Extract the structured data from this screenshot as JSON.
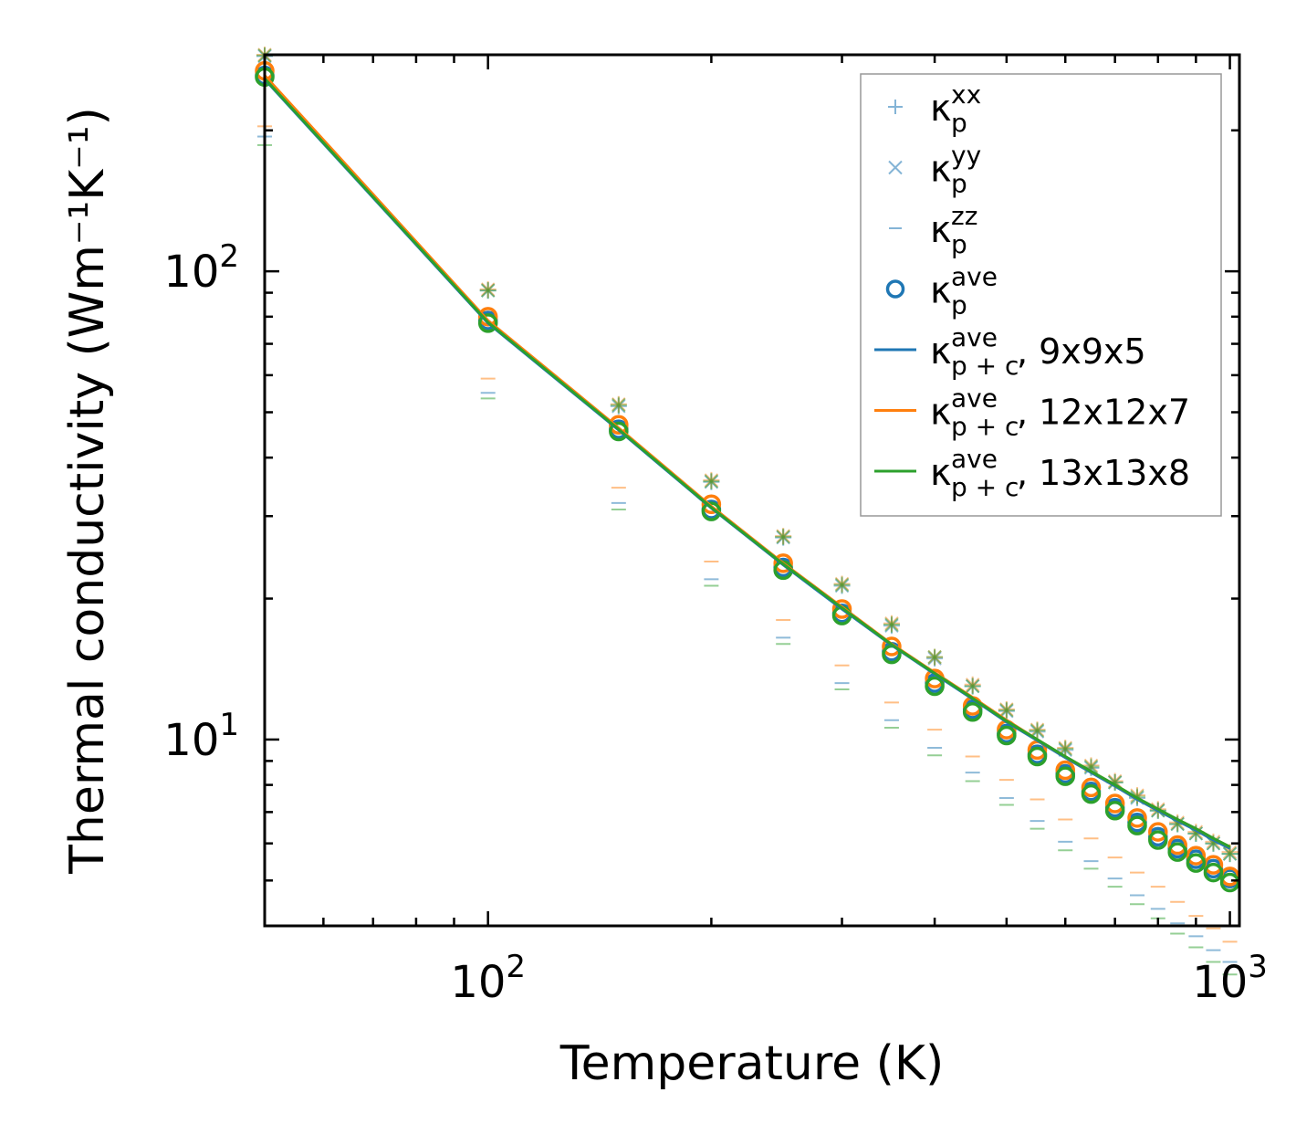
{
  "chart_data": {
    "type": "scatter",
    "title": "",
    "xlabel": "Temperature (K)",
    "ylabel": "Thermal conductivity (Wm⁻¹K⁻¹)",
    "xscale": "log",
    "yscale": "log",
    "xlim": [
      50,
      1030
    ],
    "ylim": [
      4.0,
      290
    ],
    "x_major_ticks": [
      {
        "value": 100,
        "base": "10",
        "exp": "2"
      },
      {
        "value": 1000,
        "base": "10",
        "exp": "3"
      }
    ],
    "y_major_ticks": [
      {
        "value": 10,
        "base": "10",
        "exp": "1"
      },
      {
        "value": 100,
        "base": "10",
        "exp": "2"
      }
    ],
    "x": [
      50,
      100,
      150,
      200,
      250,
      300,
      350,
      400,
      450,
      500,
      550,
      600,
      650,
      700,
      750,
      800,
      850,
      900,
      950,
      1000
    ],
    "legend_position": "upper right",
    "colors": {
      "blue": "#1f77b4",
      "orange": "#ff7f0e",
      "green": "#2ca02c"
    },
    "legend": [
      {
        "kind": "plus",
        "label": "κ",
        "sup": "xx",
        "sub": "p"
      },
      {
        "kind": "cross",
        "label": "κ",
        "sup": "yy",
        "sub": "p"
      },
      {
        "kind": "dash",
        "label": "κ",
        "sup": "zz",
        "sub": "p"
      },
      {
        "kind": "circle",
        "label": "κ",
        "sup": "ave",
        "sub": "p"
      },
      {
        "kind": "line",
        "color": "blue",
        "label": "κ",
        "sup": "ave",
        "sub": "p + c",
        "suffix": ", 9x9x5"
      },
      {
        "kind": "line",
        "color": "orange",
        "label": "κ",
        "sup": "ave",
        "sub": "p + c",
        "suffix": ", 12x12x7"
      },
      {
        "kind": "line",
        "color": "green",
        "label": "κ",
        "sup": "ave",
        "sub": "p + c",
        "suffix": ", 13x13x8"
      }
    ],
    "series": [
      {
        "name": "9x9x5",
        "color": "blue",
        "kxx": [
          288,
          91,
          51.5,
          35.5,
          27,
          21.3,
          17.5,
          14.9,
          13,
          11.5,
          10.4,
          9.5,
          8.7,
          8.1,
          7.5,
          7.05,
          6.6,
          6.3,
          6.0,
          5.7
        ],
        "kzz": [
          194,
          55,
          32,
          22,
          16.5,
          13.2,
          11.0,
          9.6,
          8.5,
          7.5,
          6.7,
          6.05,
          5.5,
          5.05,
          4.65,
          4.35,
          4.05,
          3.8,
          3.55,
          3.35
        ],
        "kave": [
          262,
          78.5,
          46,
          31,
          23.3,
          18.6,
          15.4,
          13.2,
          11.6,
          10.3,
          9.3,
          8.45,
          7.75,
          7.15,
          6.65,
          6.2,
          5.85,
          5.55,
          5.3,
          5.05
        ],
        "line": [
          257,
          77.5,
          45.8,
          31.2,
          23.6,
          19.0,
          15.9,
          13.8,
          12.2,
          10.9,
          9.95,
          9.15,
          8.5,
          7.95,
          7.45,
          7.05,
          6.7,
          6.4,
          6.1,
          5.85
        ]
      },
      {
        "name": "12x12x7",
        "color": "orange",
        "kxx": [
          290,
          91.5,
          52,
          35.8,
          27.2,
          21.5,
          17.7,
          15.0,
          13.1,
          11.6,
          10.5,
          9.6,
          8.8,
          8.15,
          7.6,
          7.1,
          6.65,
          6.35,
          6.05,
          5.75
        ],
        "kzz": [
          204,
          59,
          34.5,
          24,
          18.0,
          14.4,
          12.0,
          10.5,
          9.2,
          8.2,
          7.45,
          6.75,
          6.15,
          5.6,
          5.2,
          4.85,
          4.5,
          4.2,
          3.95,
          3.7
        ],
        "kave": [
          268,
          80,
          47,
          31.8,
          23.8,
          19.0,
          15.8,
          13.5,
          11.8,
          10.5,
          9.5,
          8.6,
          7.9,
          7.3,
          6.8,
          6.35,
          5.95,
          5.65,
          5.4,
          5.1
        ],
        "line": [
          262,
          78.5,
          46.3,
          31.5,
          23.8,
          19.2,
          16.0,
          13.9,
          12.3,
          11.0,
          10.0,
          9.2,
          8.55,
          8.0,
          7.5,
          7.1,
          6.75,
          6.45,
          6.15,
          5.9
        ]
      },
      {
        "name": "13x13x8",
        "color": "green",
        "kxx": [
          289,
          91,
          51.8,
          35.6,
          27.1,
          21.4,
          17.6,
          15.0,
          13.0,
          11.55,
          10.45,
          9.55,
          8.75,
          8.1,
          7.55,
          7.05,
          6.6,
          6.3,
          6.0,
          5.7
        ],
        "kzz": [
          186,
          53.5,
          31,
          21.3,
          16.0,
          12.8,
          10.6,
          9.25,
          8.15,
          7.25,
          6.45,
          5.8,
          5.3,
          4.85,
          4.45,
          4.15,
          3.85,
          3.6,
          3.35,
          3.15
        ],
        "kave": [
          260,
          77.5,
          45.5,
          30.7,
          23.0,
          18.4,
          15.2,
          13.0,
          11.45,
          10.2,
          9.2,
          8.35,
          7.65,
          7.05,
          6.55,
          6.1,
          5.75,
          5.45,
          5.2,
          4.95
        ],
        "line": [
          258,
          77.8,
          46.0,
          31.3,
          23.7,
          19.1,
          15.95,
          13.85,
          12.25,
          10.95,
          10.0,
          9.2,
          8.55,
          8.0,
          7.5,
          7.1,
          6.75,
          6.45,
          6.15,
          5.9
        ]
      }
    ]
  }
}
